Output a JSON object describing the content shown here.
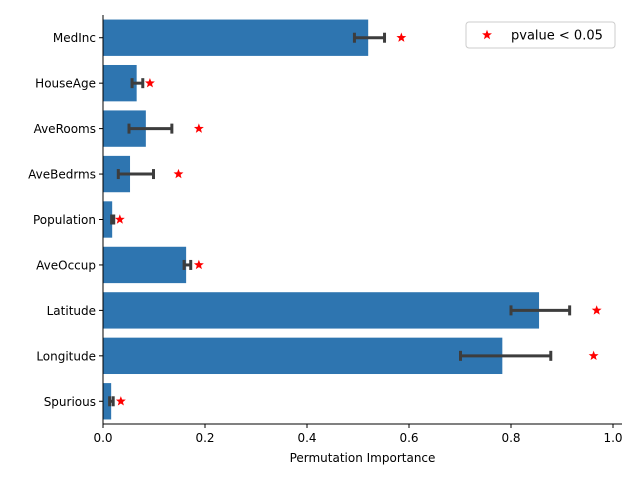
{
  "chart_data": {
    "type": "bar",
    "orientation": "horizontal",
    "xlabel": "Permutation Importance",
    "ylabel": "",
    "xlim": [
      0,
      1.0
    ],
    "xticks": [
      0.0,
      0.2,
      0.4,
      0.6,
      0.8,
      1.0
    ],
    "xtick_labels": [
      "0.0",
      "0.2",
      "0.4",
      "0.6",
      "0.8",
      "1.0"
    ],
    "categories": [
      "MedInc",
      "HouseAge",
      "AveRooms",
      "AveBedrms",
      "Population",
      "AveOccup",
      "Latitude",
      "Longitude",
      "Spurious"
    ],
    "values": [
      0.52,
      0.066,
      0.084,
      0.053,
      0.018,
      0.163,
      0.855,
      0.783,
      0.016
    ],
    "errors": [
      [
        0.493,
        0.552
      ],
      [
        0.057,
        0.078
      ],
      [
        0.051,
        0.135
      ],
      [
        0.03,
        0.099
      ],
      [
        0.017,
        0.021
      ],
      [
        0.159,
        0.172
      ],
      [
        0.8,
        0.915
      ],
      [
        0.701,
        0.878
      ],
      [
        0.013,
        0.02
      ]
    ],
    "significant_markers": [
      0.585,
      0.092,
      0.188,
      0.148,
      0.033,
      0.188,
      0.968,
      0.962,
      0.035
    ],
    "bar_color": "#2e75b0",
    "errorbar_color": "#3d3d3d",
    "marker_color": "#ff0000",
    "legend": {
      "entries": [
        "pvalue < 0.05"
      ],
      "placement": "top-right"
    },
    "grid": false
  }
}
